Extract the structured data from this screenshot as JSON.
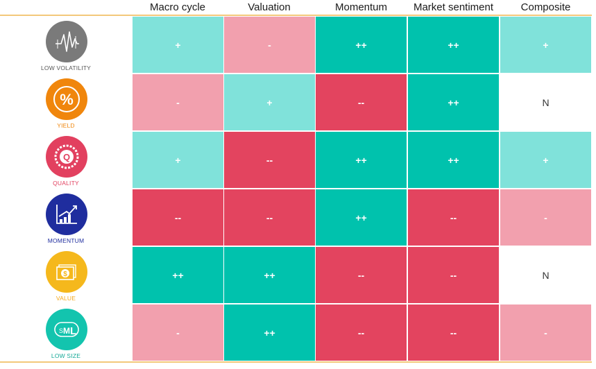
{
  "columns": [
    "Macro cycle",
    "Valuation",
    "Momentum",
    "Market sentiment",
    "Composite"
  ],
  "factors": [
    {
      "name": "LOW VOLATILITY",
      "icon": "low-volatility-icon",
      "color": "#7a7a7a",
      "ratings": [
        "+",
        "-",
        "++",
        "++",
        "+"
      ]
    },
    {
      "name": "YIELD",
      "icon": "percent-icon",
      "color": "#f0860c",
      "ratings": [
        "-",
        "+",
        "--",
        "++",
        "N"
      ]
    },
    {
      "name": "QUALITY",
      "icon": "quality-badge-icon",
      "color": "#e2405f",
      "ratings": [
        "+",
        "--",
        "++",
        "++",
        "+"
      ]
    },
    {
      "name": "MOMENTUM",
      "icon": "momentum-chart-icon",
      "color": "#1f2d9e",
      "ratings": [
        "--",
        "--",
        "++",
        "--",
        "-"
      ]
    },
    {
      "name": "VALUE",
      "icon": "dollar-bill-icon",
      "color": "#f5b81c",
      "ratings": [
        "++",
        "++",
        "--",
        "--",
        "N"
      ]
    },
    {
      "name": "LOW SIZE",
      "icon": "sml-size-icon",
      "color": "#13c4ae",
      "ratings": [
        "-",
        "++",
        "--",
        "--",
        "-"
      ]
    }
  ],
  "rating_colors": {
    "++": "#00c2ad",
    "+": "#80e2da",
    "N": "#ffffff",
    "-": "#f2a0ae",
    "--": "#e3445f"
  },
  "chart_data": {
    "type": "heatmap",
    "x": [
      "Macro cycle",
      "Valuation",
      "Momentum",
      "Market sentiment",
      "Composite"
    ],
    "y": [
      "LOW VOLATILITY",
      "YIELD",
      "QUALITY",
      "MOMENTUM",
      "VALUE",
      "LOW SIZE"
    ],
    "values": [
      [
        "+",
        "-",
        "++",
        "++",
        "+"
      ],
      [
        "-",
        "+",
        "--",
        "++",
        "N"
      ],
      [
        "+",
        "--",
        "++",
        "++",
        "+"
      ],
      [
        "--",
        "--",
        "++",
        "--",
        "-"
      ],
      [
        "++",
        "++",
        "--",
        "--",
        "N"
      ],
      [
        "-",
        "++",
        "--",
        "--",
        "-"
      ]
    ],
    "scale": [
      "++",
      "+",
      "N",
      "-",
      "--"
    ]
  }
}
